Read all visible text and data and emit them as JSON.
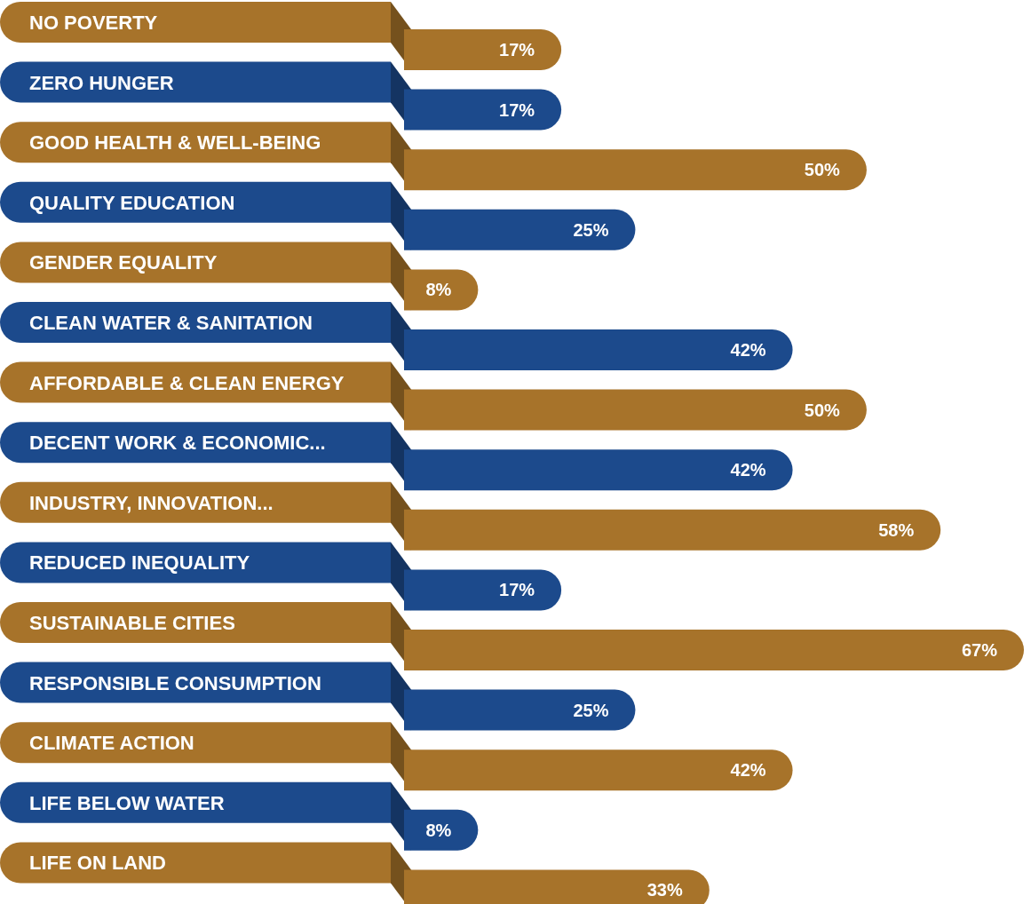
{
  "chart_data": {
    "type": "bar",
    "orientation": "horizontal",
    "categories": [
      "NO POVERTY",
      "ZERO HUNGER",
      "GOOD HEALTH & WELL-BEING",
      "QUALITY EDUCATION",
      "GENDER EQUALITY",
      "CLEAN WATER & SANITATION",
      "AFFORDABLE & CLEAN ENERGY",
      "DECENT WORK & ECONOMIC...",
      "INDUSTRY, INNOVATION...",
      "REDUCED INEQUALITY",
      "SUSTAINABLE CITIES",
      "RESPONSIBLE CONSUMPTION",
      "CLIMATE ACTION",
      "LIFE BELOW WATER",
      "LIFE ON LAND"
    ],
    "values": [
      17,
      17,
      50,
      25,
      8,
      42,
      50,
      42,
      58,
      17,
      67,
      25,
      42,
      8,
      33
    ],
    "value_labels": [
      "17%",
      "17%",
      "50%",
      "25%",
      "8%",
      "42%",
      "50%",
      "42%",
      "58%",
      "17%",
      "67%",
      "25%",
      "42%",
      "8%",
      "33%"
    ],
    "colors": [
      "#a7732a",
      "#1c4a8c",
      "#a7732a",
      "#1c4a8c",
      "#a7732a",
      "#1c4a8c",
      "#a7732a",
      "#1c4a8c",
      "#a7732a",
      "#1c4a8c",
      "#a7732a",
      "#1c4a8c",
      "#a7732a",
      "#1c4a8c",
      "#a7732a"
    ]
  }
}
